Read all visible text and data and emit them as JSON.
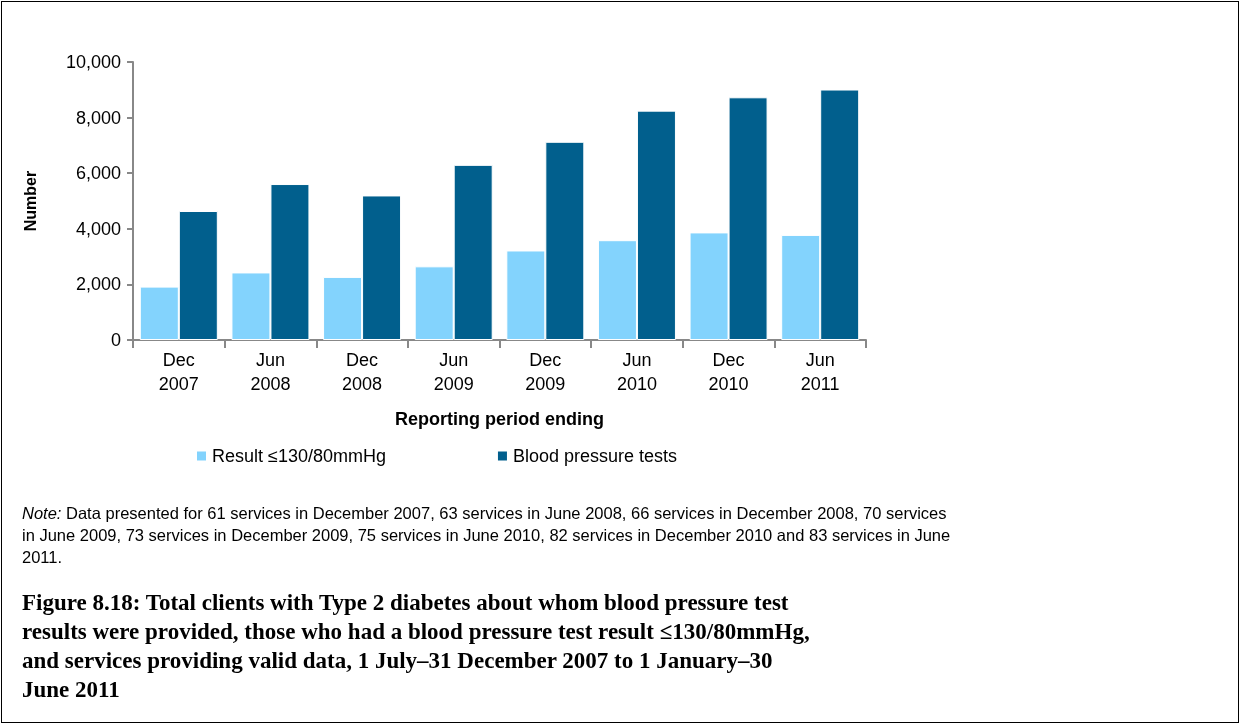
{
  "chart_data": {
    "type": "bar",
    "title": "Figure 8.18: Total clients with Type 2 diabetes about whom blood pressure test results were provided, those who had a blood pressure test result ≤130/80mmHg, and services providing valid data, 1 July–31 December 2007 to 1 January–30 June 2011",
    "xlabel": "Reporting period ending",
    "ylabel": "Number",
    "categories": [
      "Dec 2007",
      "Jun 2008",
      "Dec 2008",
      "Jun 2009",
      "Dec 2009",
      "Jun 2010",
      "Dec 2010",
      "Jun 2011"
    ],
    "series": [
      {
        "name": "Result ≤130/80mmHg",
        "color": "#83d3fd",
        "values": [
          1920,
          2430,
          2270,
          2650,
          3220,
          3590,
          3870,
          3780
        ]
      },
      {
        "name": "Blood pressure tests",
        "color": "#015f8d",
        "values": [
          4640,
          5610,
          5200,
          6300,
          7130,
          8250,
          8730,
          9010
        ]
      }
    ],
    "ylim": [
      0,
      10000
    ],
    "yticks": [
      0,
      {
        "value": 2000,
        "label": "2,000"
      },
      {
        "value": 4000,
        "label": "4,000"
      },
      {
        "value": 6000,
        "label": "6,000"
      },
      {
        "value": 8000,
        "label": "8,000"
      },
      {
        "value": 10000,
        "label": "10,000"
      }
    ],
    "grid": false,
    "legend": "bottom",
    "annotations": [
      "Note: Data presented for 61 services in December 2007, 63 services in June 2008, 66 services in December 2008, 70 services in June 2009, 73 services in December 2009, 75 services in June 2010, 82 services in December 2010 and 83 services in June 2011."
    ]
  }
}
